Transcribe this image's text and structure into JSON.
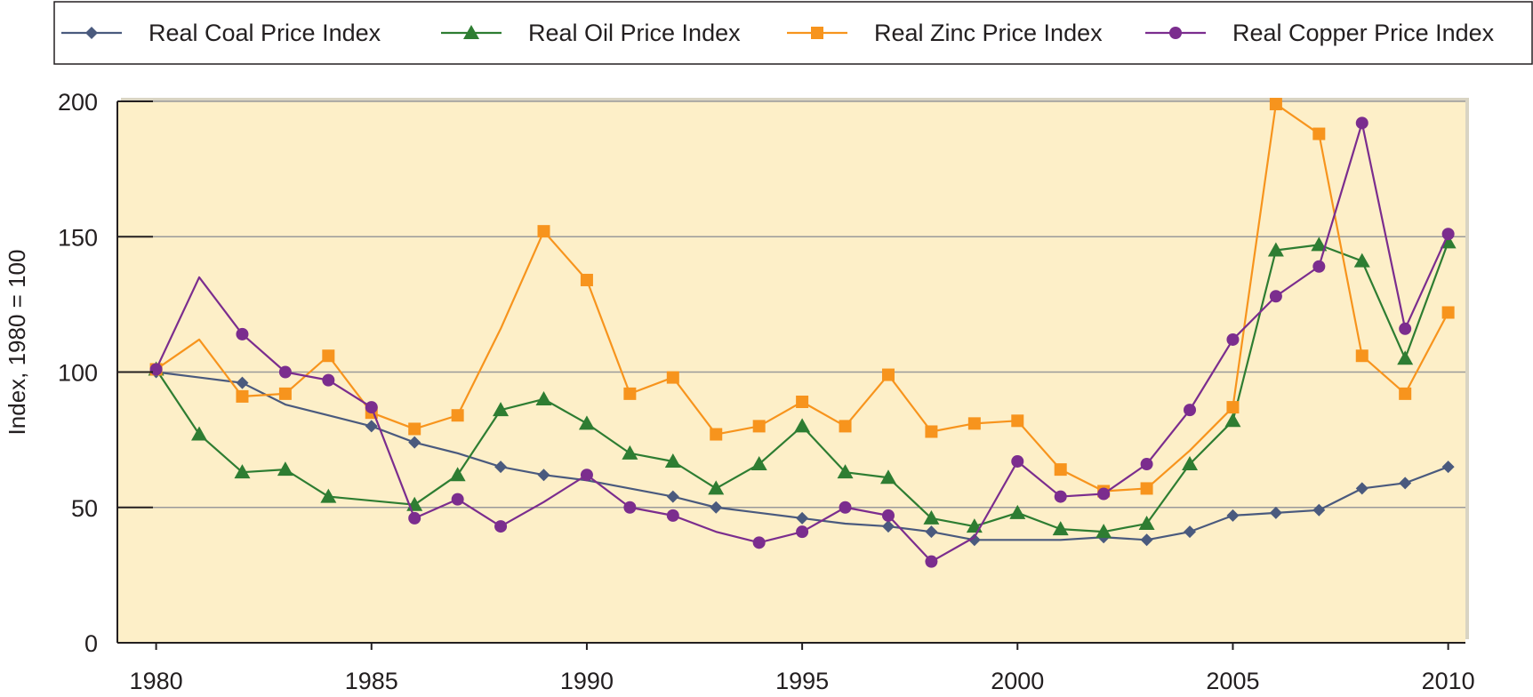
{
  "chart_data": {
    "type": "line",
    "title": "",
    "xlabel": "",
    "ylabel": "Index, 1980 = 100",
    "xlim": [
      1979.1,
      2010.4
    ],
    "ylim": [
      0,
      200
    ],
    "x_ticks": [
      "1980",
      "1985",
      "1990",
      "1995",
      "2000",
      "2005",
      "2010"
    ],
    "y_ticks": [
      "0",
      "50",
      "100",
      "150",
      "200"
    ],
    "grid": "horizontal",
    "plot_background": "#fdefc8",
    "legend_position": "top",
    "series": [
      {
        "name": "Real Coal Price Index",
        "color": "#4a5a7e",
        "marker": "diamond",
        "x": [
          1980,
          1981,
          1982,
          1983,
          1984,
          1985,
          1986,
          1987,
          1988,
          1989,
          1990,
          1991,
          1992,
          1993,
          1994,
          1995,
          1996,
          1997,
          1998,
          1999,
          2000,
          2001,
          2002,
          2003,
          2004,
          2005,
          2006,
          2007,
          2008,
          2009,
          2010
        ],
        "values": [
          100,
          98,
          96,
          88,
          84,
          80,
          74,
          70,
          65,
          62,
          60,
          57,
          54,
          50,
          48,
          46,
          44,
          43,
          41,
          38,
          38,
          38,
          39,
          38,
          41,
          47,
          48,
          49,
          57,
          59,
          65
        ],
        "marked": [
          true,
          false,
          true,
          false,
          false,
          true,
          true,
          false,
          true,
          true,
          false,
          false,
          true,
          true,
          false,
          true,
          false,
          true,
          true,
          true,
          false,
          false,
          true,
          true,
          true,
          true,
          true,
          true,
          true,
          true,
          true
        ]
      },
      {
        "name": "Real Oil Price Index",
        "color": "#2e7d32",
        "marker": "triangle",
        "x": [
          1980,
          1981,
          1982,
          1983,
          1984,
          1986,
          1987,
          1988,
          1989,
          1990,
          1991,
          1992,
          1993,
          1994,
          1995,
          1996,
          1997,
          1998,
          1999,
          2000,
          2001,
          2002,
          2003,
          2004,
          2005,
          2006,
          2007,
          2008,
          2009,
          2010
        ],
        "values": [
          101,
          77,
          63,
          64,
          54,
          51,
          62,
          86,
          90,
          81,
          70,
          67,
          57,
          66,
          80,
          63,
          61,
          46,
          43,
          48,
          42,
          41,
          44,
          66,
          82,
          145,
          147,
          141,
          105,
          148
        ],
        "marked": [
          true,
          true,
          true,
          true,
          true,
          true,
          true,
          true,
          true,
          true,
          true,
          true,
          true,
          true,
          true,
          true,
          true,
          true,
          true,
          true,
          true,
          true,
          true,
          true,
          true,
          true,
          true,
          true,
          true,
          true
        ]
      },
      {
        "name": "Real Zinc Price Index",
        "color": "#f7941d",
        "marker": "square",
        "x": [
          1980,
          1981,
          1982,
          1983,
          1984,
          1985,
          1986,
          1987,
          1988,
          1989,
          1990,
          1991,
          1992,
          1993,
          1994,
          1995,
          1996,
          1997,
          1998,
          1999,
          2000,
          2001,
          2002,
          2003,
          2004,
          2005,
          2006,
          2007,
          2008,
          2009,
          2010
        ],
        "values": [
          101,
          112,
          91,
          92,
          106,
          85,
          79,
          84,
          116,
          152,
          134,
          92,
          98,
          77,
          80,
          89,
          80,
          99,
          78,
          81,
          82,
          64,
          56,
          57,
          71,
          87,
          199,
          188,
          106,
          92,
          122
        ],
        "marked": [
          true,
          false,
          true,
          true,
          true,
          true,
          true,
          true,
          false,
          true,
          true,
          true,
          true,
          true,
          true,
          true,
          true,
          true,
          true,
          true,
          true,
          true,
          true,
          true,
          false,
          true,
          true,
          true,
          true,
          true,
          true
        ]
      },
      {
        "name": "Real Copper Price Index",
        "color": "#7b2d8e",
        "marker": "circle",
        "x": [
          1980,
          1981,
          1982,
          1983,
          1984,
          1985,
          1986,
          1987,
          1988,
          1989,
          1990,
          1991,
          1992,
          1993,
          1994,
          1995,
          1996,
          1997,
          1998,
          1999,
          2000,
          2001,
          2002,
          2003,
          2004,
          2005,
          2006,
          2007,
          2008,
          2009,
          2010
        ],
        "values": [
          101,
          135,
          114,
          100,
          97,
          87,
          46,
          53,
          43,
          52,
          62,
          50,
          47,
          41,
          37,
          41,
          50,
          47,
          30,
          39,
          67,
          54,
          55,
          66,
          86,
          112,
          128,
          139,
          192,
          116,
          151
        ],
        "marked": [
          true,
          false,
          true,
          true,
          true,
          true,
          true,
          true,
          true,
          false,
          true,
          true,
          true,
          false,
          true,
          true,
          true,
          true,
          true,
          false,
          true,
          true,
          true,
          true,
          true,
          true,
          true,
          true,
          true,
          true,
          true
        ]
      }
    ]
  }
}
